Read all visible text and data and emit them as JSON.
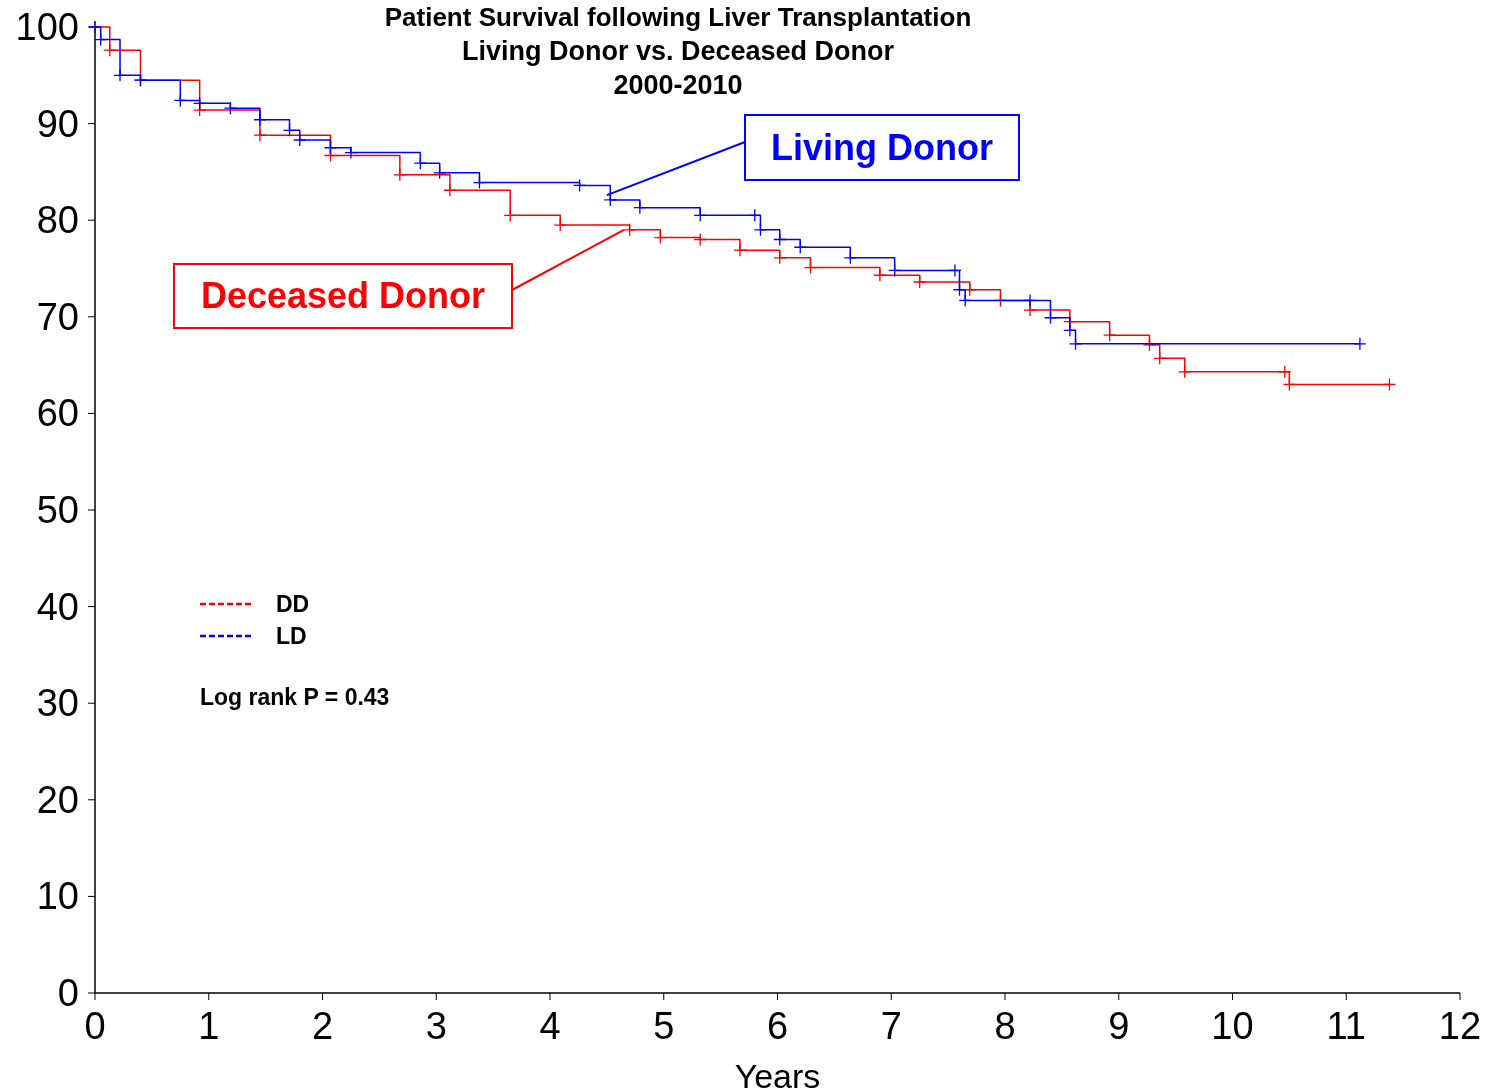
{
  "chart_data": {
    "type": "step",
    "title": "Patient Survival following Liver Transplantation",
    "subtitle": "Living Donor vs. Deceased Donor\n2000-2010",
    "xlabel": "Years",
    "x": [
      0,
      0.13,
      0.4,
      0.92,
      1.45,
      2.07,
      2.68,
      3.12,
      3.65,
      4.09,
      4.7,
      4.97,
      5.32,
      5.67,
      6.02,
      6.29,
      6.9,
      7.25,
      7.69,
      7.96,
      8.22,
      8.57,
      8.92,
      9.27,
      9.36,
      9.58,
      10.46,
      10.5,
      11.38
    ],
    "series": [
      {
        "name": "DD",
        "color": "#ff0000",
        "values": [
          100,
          97.6,
          94.5,
          91.4,
          88.8,
          86.7,
          84.7,
          83.1,
          80.5,
          79.5,
          79.0,
          78.2,
          78.0,
          76.9,
          76.1,
          75.1,
          74.3,
          73.6,
          72.8,
          71.7,
          70.7,
          69.5,
          68.1,
          67.1,
          65.7,
          64.3,
          64.3,
          63.0,
          63.0
        ]
      },
      {
        "name": "LD",
        "color": "#0000ff",
        "x": [
          0,
          0.05,
          0.22,
          0.4,
          0.75,
          0.92,
          1.19,
          1.45,
          1.71,
          1.8,
          2.07,
          2.25,
          2.86,
          3.03,
          3.38,
          4.26,
          4.53,
          4.79,
          5.32,
          5.8,
          5.85,
          6.02,
          6.2,
          6.64,
          7.03,
          7.56,
          7.6,
          7.65,
          8.22,
          8.4,
          8.57,
          8.62,
          11.12
        ],
        "values": [
          100,
          98.7,
          95.0,
          94.5,
          92.4,
          92.1,
          91.6,
          90.4,
          89.3,
          88.3,
          87.5,
          87.0,
          85.9,
          84.9,
          83.9,
          83.6,
          82.1,
          81.3,
          80.5,
          80.5,
          79.0,
          78.0,
          77.2,
          76.1,
          74.8,
          74.8,
          72.8,
          71.7,
          71.7,
          69.9,
          68.6,
          67.2,
          67.2
        ]
      }
    ],
    "annotations": [
      {
        "text": "Deceased Donor",
        "x": 4.65,
        "y": 79.0
      },
      {
        "text": "Living Donor",
        "x": 4.5,
        "y": 82.6
      },
      "Log rank P = 0.43"
    ],
    "xlim": [
      0,
      12
    ],
    "xticks": [
      0,
      1,
      2,
      3,
      4,
      5,
      6,
      7,
      8,
      9,
      10,
      11,
      12
    ],
    "ylim": [
      0,
      100
    ],
    "yticks": [
      0,
      10,
      20,
      30,
      40,
      50,
      60,
      70,
      80,
      90,
      100
    ],
    "grid": false,
    "legend": "left",
    "marker": "cross",
    "line_style": "solid"
  }
}
